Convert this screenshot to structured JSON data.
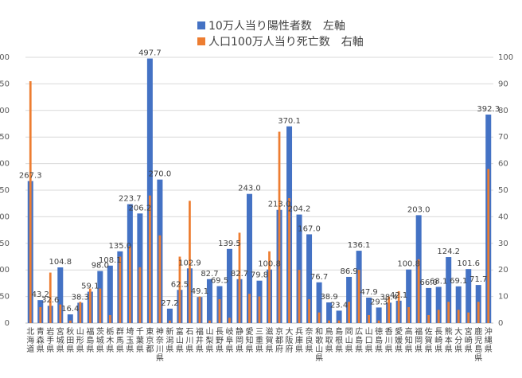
{
  "chart_data": {
    "type": "bar",
    "legend_position": "top",
    "grid": true,
    "categories": [
      "北海道",
      "青森県",
      "岩手県",
      "宮城県",
      "秋田県",
      "山形県",
      "福島県",
      "茨城県",
      "栃木県",
      "群馬県",
      "埼玉県",
      "千葉県",
      "東京都",
      "神奈川県",
      "新潟県",
      "富山県",
      "石川県",
      "福井県",
      "山梨県",
      "長野県",
      "岐阜県",
      "静岡県",
      "愛知県",
      "三重県",
      "滋賀県",
      "京都府",
      "大阪府",
      "兵庫県",
      "奈良県",
      "和歌山県",
      "鳥取県",
      "島根県",
      "岡山県",
      "広島県",
      "山口県",
      "徳島県",
      "香川県",
      "愛媛県",
      "高知県",
      "福岡県",
      "佐賀県",
      "長崎県",
      "熊本県",
      "大分県",
      "宮崎県",
      "鹿児島県",
      "沖縄県"
    ],
    "series": [
      {
        "name": "10万人当り陽性者数　左軸",
        "axis": "left",
        "color": "#4472C4",
        "values": [
          267.3,
          43.2,
          32.6,
          104.8,
          16.4,
          38.3,
          59.1,
          98.0,
          108.1,
          135.0,
          223.7,
          206.2,
          497.7,
          270.0,
          27.2,
          62.5,
          102.9,
          49.1,
          82.7,
          69.5,
          139.5,
          82.7,
          243.0,
          79.8,
          100.8,
          213.0,
          370.1,
          204.2,
          167.0,
          76.7,
          38.9,
          23.4,
          86.9,
          136.1,
          47.9,
          29.3,
          38.4,
          42.1,
          100.8,
          203.0,
          66.0,
          68.1,
          124.2,
          69.1,
          101.6,
          71.7,
          392.3
        ],
        "labels": [
          "267.3",
          "43.2",
          "32.6",
          "104.8",
          "16.4",
          "38.3",
          "59.1",
          "98.0",
          "108.1",
          "135.0",
          "223.7",
          "206.2",
          "497.7",
          "270.0",
          "27.2",
          "62.5",
          "102.9",
          "49.1",
          "82.7",
          "69.5",
          "139.5",
          "82.7",
          "243.0",
          "79.8",
          "100.8",
          "213.0",
          "370.1",
          "204.2",
          "167.0",
          "76.7",
          "38.9",
          "23.4",
          "86.9",
          "136.1",
          "47.9",
          "29.3",
          "38.4",
          "42.1",
          "100.8",
          "203.0",
          "66.0",
          "68.1",
          "124.2",
          "69.1",
          "101.6",
          "71.7",
          "392.3"
        ]
      },
      {
        "name": "人口100万人当り死亡数　右軸",
        "axis": "right",
        "color": "#ED7D31",
        "values": [
          91,
          6,
          19,
          7,
          1,
          8,
          13,
          13,
          3,
          25,
          29,
          21,
          48,
          33,
          1,
          25,
          46,
          10,
          1,
          9,
          2,
          34,
          11,
          10,
          27,
          72,
          47,
          20,
          9,
          4,
          1,
          1,
          8,
          20,
          3,
          1,
          10,
          12,
          6,
          24,
          3,
          5,
          8,
          5,
          4,
          8,
          58
        ]
      }
    ],
    "y_left": {
      "min": 0,
      "max": 500,
      "ticks": [
        "0",
        "50",
        "100",
        "150",
        "200",
        "250",
        "300",
        "350",
        "400",
        "450",
        "500"
      ]
    },
    "y_right": {
      "min": 0,
      "max": 100,
      "ticks": [
        "0",
        "10",
        "20",
        "30",
        "40",
        "50",
        "60",
        "70",
        "80",
        "90",
        "100"
      ]
    }
  }
}
